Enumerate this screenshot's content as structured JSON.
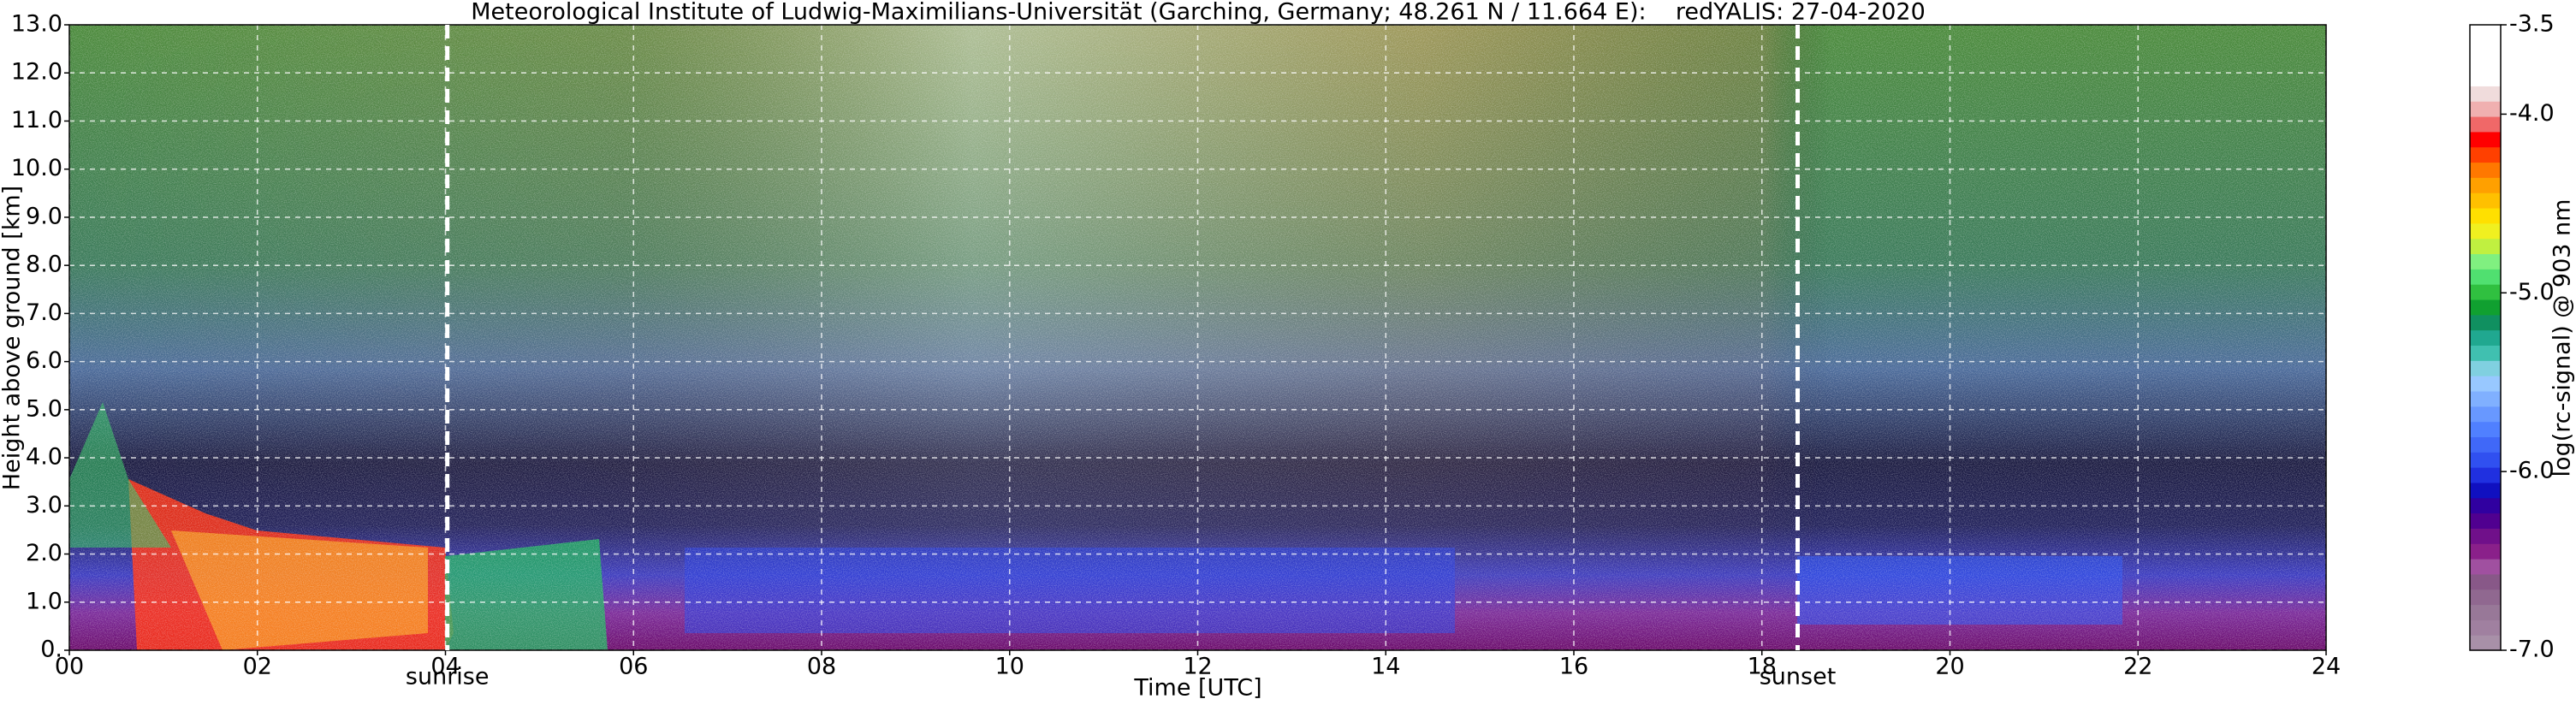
{
  "chart_data": {
    "type": "heatmap",
    "title": "Meteorological Institute of Ludwig-Maximilians-Universität (Garching, Germany; 48.261 N / 11.664 E):    redYALIS: 27-04-2020",
    "xlabel": "Time [UTC]",
    "ylabel": "Height above ground [km]",
    "xlim": [
      0,
      24
    ],
    "ylim": [
      0,
      13
    ],
    "xticks": [
      {
        "value": 0,
        "label": "00"
      },
      {
        "value": 2,
        "label": "02"
      },
      {
        "value": 4,
        "label": "04"
      },
      {
        "value": 6,
        "label": "06"
      },
      {
        "value": 8,
        "label": "08"
      },
      10,
      12,
      14,
      16,
      18,
      20,
      22,
      24
    ],
    "yticks": [
      {
        "value": 0,
        "label": "0."
      },
      {
        "value": 1,
        "label": "1.0"
      },
      {
        "value": 2,
        "label": "2.0"
      },
      {
        "value": 3,
        "label": "3.0"
      },
      {
        "value": 4,
        "label": "4.0"
      },
      {
        "value": 5,
        "label": "5.0"
      },
      {
        "value": 6,
        "label": "6.0"
      },
      {
        "value": 7,
        "label": "7.0"
      },
      {
        "value": 8,
        "label": "8.0"
      },
      {
        "value": 9,
        "label": "9.0"
      },
      {
        "value": 10,
        "label": "10.0"
      },
      {
        "value": 11,
        "label": "11.0"
      },
      {
        "value": 12,
        "label": "12.0"
      },
      {
        "value": 13,
        "label": "13.0"
      }
    ],
    "grid": true,
    "colorbar": {
      "label": "log(rc-signal) @ 903 nm",
      "lim": [
        -7,
        -3.5
      ],
      "ticks": [
        -3.5,
        {
          "value": -4,
          "label": "-4.0"
        },
        {
          "value": -5,
          "label": "-5.0"
        },
        {
          "value": -6,
          "label": "-6.0"
        },
        {
          "value": -7,
          "label": "-7.0"
        }
      ],
      "colors": [
        "#a890a8",
        "#a080a0",
        "#987898",
        "#906890",
        "#885888",
        "#a050a0",
        "#8a208a",
        "#70108a",
        "#500090",
        "#3000a0",
        "#1010c0",
        "#2030e0",
        "#3050f0",
        "#4068f8",
        "#5080ff",
        "#6898ff",
        "#80b0ff",
        "#98c8ff",
        "#80d0e0",
        "#40c0b0",
        "#20a890",
        "#109060",
        "#10a030",
        "#30c040",
        "#50e070",
        "#80f080",
        "#c0f040",
        "#f0f020",
        "#ffe000",
        "#ffc000",
        "#ffa000",
        "#ff7800",
        "#ff4000",
        "#ff0000",
        "#f06868",
        "#f0b0b0",
        "#f0dcdc",
        "#ffffff",
        "#ffffff",
        "#ffffff",
        "#ffffff"
      ]
    },
    "annotations": [
      {
        "text": "sunrise",
        "x": 4.02
      },
      {
        "text": "sunset",
        "x": 18.38
      }
    ]
  }
}
